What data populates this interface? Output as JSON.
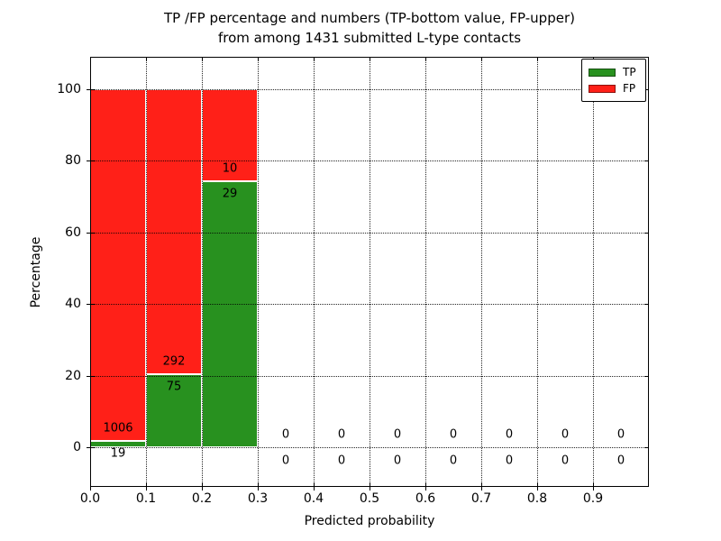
{
  "figure": {
    "title_line1": "TP /FP percentage and numbers (TP-bottom value, FP-upper)",
    "title_line2": "from among 1431 submitted L-type contacts",
    "total_submitted": 1431
  },
  "chart_data": {
    "type": "bar",
    "stacked": true,
    "title": "TP /FP percentage and numbers (TP-bottom value, FP-upper)\nfrom among 1431 submitted L-type contacts",
    "xlabel": "Predicted probability",
    "ylabel": "Percentage",
    "xlim": [
      0,
      1.0
    ],
    "ylim": [
      -11,
      109
    ],
    "xtick_labels": [
      "0.0",
      "0.1",
      "0.2",
      "0.3",
      "0.4",
      "0.5",
      "0.6",
      "0.7",
      "0.8",
      "0.9"
    ],
    "xtick_values": [
      0,
      0.1,
      0.2,
      0.3,
      0.4,
      0.5,
      0.6,
      0.7,
      0.8,
      0.9
    ],
    "ytick_values": [
      0,
      20,
      40,
      60,
      80,
      100
    ],
    "grid": "dotted",
    "grid_above_bars": true,
    "bar_label_rule": "FP count above TP/FP boundary, TP count below boundary",
    "colors": {
      "tp": "#28911f",
      "fp": "#ff2018",
      "bar_edge": "#ffffff",
      "text": "#000000"
    },
    "legend": {
      "position": "upper right",
      "entries": [
        {
          "label": "TP",
          "color": "#28911f"
        },
        {
          "label": "FP",
          "color": "#ff2018"
        }
      ]
    },
    "bins": [
      {
        "range": [
          0.0,
          0.1
        ],
        "tp": 19,
        "fp": 1006,
        "tp_pct": 1.85,
        "fp_pct": 98.15
      },
      {
        "range": [
          0.1,
          0.2
        ],
        "tp": 75,
        "fp": 292,
        "tp_pct": 20.44,
        "fp_pct": 79.56
      },
      {
        "range": [
          0.2,
          0.3
        ],
        "tp": 29,
        "fp": 10,
        "tp_pct": 74.36,
        "fp_pct": 25.64
      },
      {
        "range": [
          0.3,
          0.4
        ],
        "tp": 0,
        "fp": 0,
        "tp_pct": 0,
        "fp_pct": 0
      },
      {
        "range": [
          0.4,
          0.5
        ],
        "tp": 0,
        "fp": 0,
        "tp_pct": 0,
        "fp_pct": 0
      },
      {
        "range": [
          0.5,
          0.6
        ],
        "tp": 0,
        "fp": 0,
        "tp_pct": 0,
        "fp_pct": 0
      },
      {
        "range": [
          0.6,
          0.7
        ],
        "tp": 0,
        "fp": 0,
        "tp_pct": 0,
        "fp_pct": 0
      },
      {
        "range": [
          0.7,
          0.8
        ],
        "tp": 0,
        "fp": 0,
        "tp_pct": 0,
        "fp_pct": 0
      },
      {
        "range": [
          0.8,
          0.9
        ],
        "tp": 0,
        "fp": 0,
        "tp_pct": 0,
        "fp_pct": 0
      },
      {
        "range": [
          0.9,
          1.0
        ],
        "tp": 0,
        "fp": 0,
        "tp_pct": 0,
        "fp_pct": 0
      }
    ]
  }
}
